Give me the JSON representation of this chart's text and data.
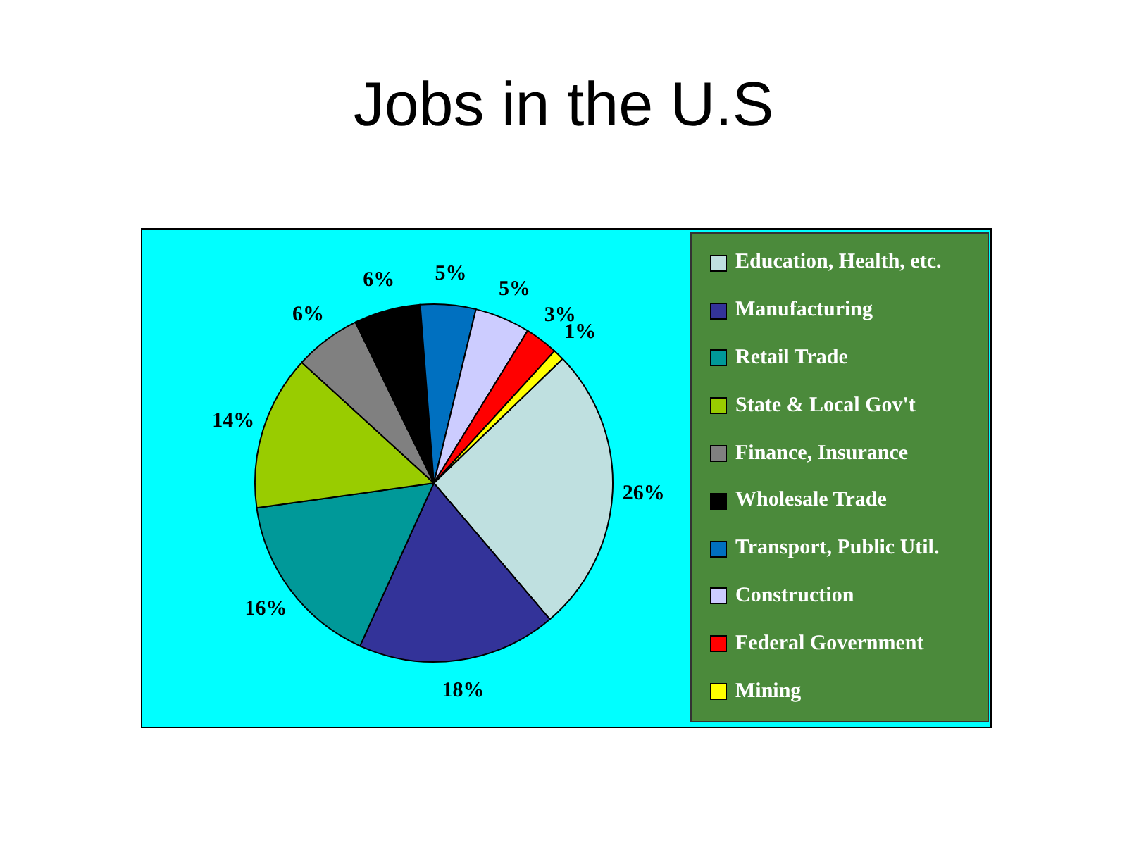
{
  "chart_data": {
    "type": "pie",
    "title": "Jobs in the U.S",
    "categories": [
      "Education, Health, etc.",
      "Manufacturing",
      "Retail Trade",
      "State & Local Gov't",
      "Finance, Insurance",
      "Wholesale Trade",
      "Transport, Public Util.",
      "Construction",
      "Federal Government",
      "Mining"
    ],
    "values": [
      26,
      18,
      16,
      14,
      6,
      6,
      5,
      5,
      3,
      1
    ],
    "colors": [
      "#bfe0e0",
      "#333399",
      "#009999",
      "#99cc00",
      "#808080",
      "#000000",
      "#0070c0",
      "#ccccff",
      "#ff0000",
      "#ffff00"
    ],
    "value_labels": [
      "26%",
      "18%",
      "16%",
      "14%",
      "6%",
      "6%",
      "5%",
      "5%",
      "3%",
      "1%"
    ],
    "legend": "right"
  }
}
